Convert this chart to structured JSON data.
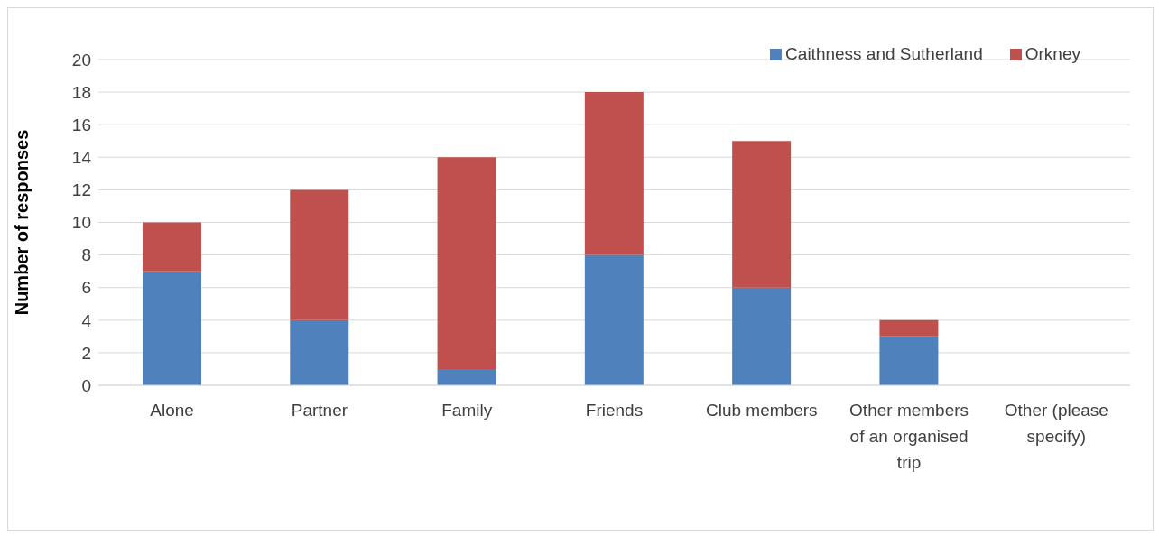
{
  "chart_data": {
    "type": "bar",
    "ylabel": "Number of responses",
    "categories": [
      "Alone",
      "Partner",
      "Family",
      "Friends",
      "Club members",
      "Other members of an organised trip",
      "Other (please specify)"
    ],
    "series": [
      {
        "name": "Caithness and Sutherland",
        "color": "#4f81bd",
        "values": [
          7,
          4,
          1,
          8,
          6,
          3,
          0
        ]
      },
      {
        "name": "Orkney",
        "color": "#c0504d",
        "values": [
          3,
          8,
          13,
          10,
          9,
          1,
          0
        ]
      }
    ],
    "stacked": true,
    "ylim": [
      0,
      20
    ],
    "yticks": [
      0,
      2,
      4,
      6,
      8,
      10,
      12,
      14,
      16,
      18,
      20
    ],
    "grid": "y",
    "legend": "top right"
  }
}
